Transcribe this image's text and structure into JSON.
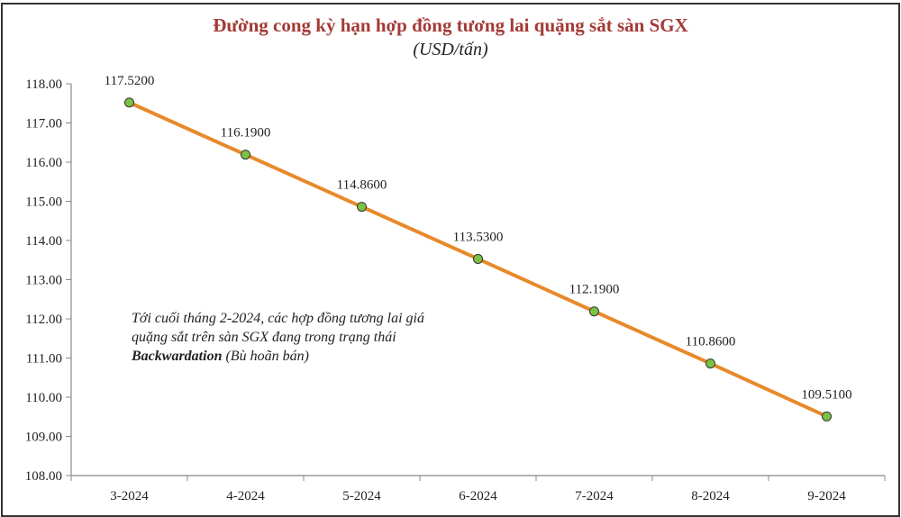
{
  "chart_data": {
    "type": "line",
    "title": "Đường cong kỳ hạn hợp đồng tương lai quặng sắt sàn SGX",
    "subtitle": "(USD/tấn)",
    "categories": [
      "3-2024",
      "4-2024",
      "5-2024",
      "6-2024",
      "7-2024",
      "8-2024",
      "9-2024"
    ],
    "values": [
      117.52,
      116.19,
      114.86,
      113.53,
      112.19,
      110.86,
      109.51
    ],
    "data_labels": [
      "117.5200",
      "116.1900",
      "114.8600",
      "113.5300",
      "112.1900",
      "110.8600",
      "109.5100"
    ],
    "ylim": [
      108,
      118
    ],
    "yticks": [
      "108.00",
      "109.00",
      "110.00",
      "111.00",
      "112.00",
      "113.00",
      "114.00",
      "115.00",
      "116.00",
      "117.00",
      "118.00"
    ],
    "xlabel": "",
    "ylabel": "",
    "line_color": "#e8892a",
    "marker_color": "#7cc242",
    "annotation": {
      "line1": "Tới cuối tháng 2-2024, các hợp đồng tương lai giá",
      "line2": "quặng sắt trên sàn SGX đang trong trạng thái",
      "bold": "Backwardation",
      "rest": " (Bù hoãn bán)"
    }
  }
}
